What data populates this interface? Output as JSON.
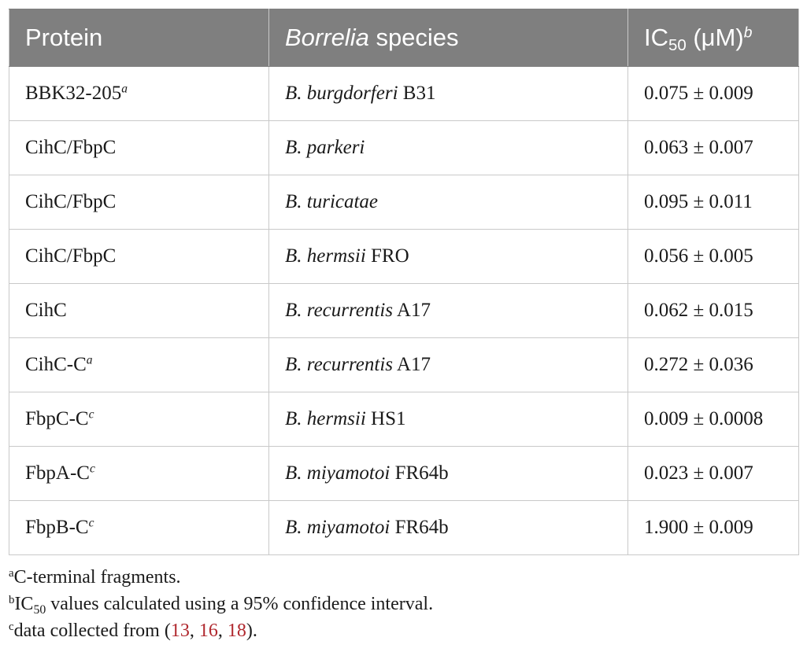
{
  "table": {
    "headers": {
      "protein": "Protein",
      "species_italic": "Borrelia",
      "species_rest": " species",
      "ic_prefix": "IC",
      "ic_sub": "50",
      "ic_unit": " (μM)",
      "ic_sup": "b"
    },
    "rows": [
      {
        "protein": "BBK32-205",
        "protein_sup": "a",
        "species_italic": "B. burgdorferi",
        "species_rest": " B31",
        "ic50": "0.075 ± 0.009"
      },
      {
        "protein": "CihC/FbpC",
        "protein_sup": "",
        "species_italic": "B. parkeri",
        "species_rest": "",
        "ic50": "0.063 ± 0.007"
      },
      {
        "protein": "CihC/FbpC",
        "protein_sup": "",
        "species_italic": "B. turicatae",
        "species_rest": "",
        "ic50": "0.095 ± 0.011"
      },
      {
        "protein": "CihC/FbpC",
        "protein_sup": "",
        "species_italic": "B. hermsii",
        "species_rest": " FRO",
        "ic50": "0.056 ± 0.005"
      },
      {
        "protein": "CihC",
        "protein_sup": "",
        "species_italic": "B. recurrentis",
        "species_rest": " A17",
        "ic50": "0.062 ± 0.015"
      },
      {
        "protein": "CihC-C",
        "protein_sup": "a",
        "species_italic": "B. recurrentis",
        "species_rest": " A17",
        "ic50": "0.272 ± 0.036"
      },
      {
        "protein": "FbpC-C",
        "protein_sup": "c",
        "species_italic": "B. hermsii",
        "species_rest": " HS1",
        "ic50": "0.009 ± 0.0008"
      },
      {
        "protein": "FbpA-C",
        "protein_sup": "c",
        "species_italic": "B. miyamotoi",
        "species_rest": " FR64b",
        "ic50": "0.023 ± 0.007"
      },
      {
        "protein": "FbpB-C",
        "protein_sup": "c",
        "species_italic": "B. miyamotoi",
        "species_rest": " FR64b",
        "ic50": "1.900 ± 0.009"
      }
    ]
  },
  "footnotes": {
    "a": {
      "mark": "a",
      "text": "C-terminal fragments."
    },
    "b": {
      "mark": "b",
      "prefix": "IC",
      "sub": "50",
      "text": " values calculated using a 95% confidence interval."
    },
    "c": {
      "mark": "c",
      "text_before": "data collected from (",
      "ref1": "13",
      "sep1": ", ",
      "ref2": "16",
      "sep2": ", ",
      "ref3": "18",
      "text_after": ")."
    }
  },
  "colors": {
    "header_bg": "#7f7f7f",
    "header_text": "#ffffff",
    "border": "#c9c9c9",
    "reference_link": "#b0282e"
  }
}
